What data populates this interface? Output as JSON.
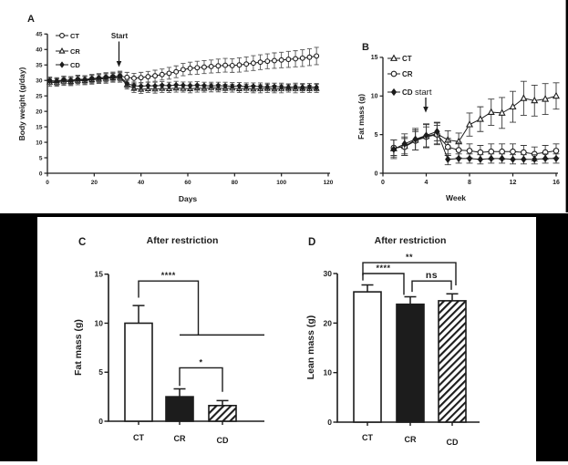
{
  "colors": {
    "background": "#ffffff",
    "band": "#000000",
    "ink": "#1c1c1c",
    "error_gray": "#555555",
    "marker_fill": "#ffffff"
  },
  "chart_data": [
    {
      "panel": "A",
      "type": "line",
      "xlabel": "Days",
      "ylabel": "Body weight (g/day)",
      "xlim": [
        0,
        120
      ],
      "ylim": [
        0,
        45
      ],
      "xticks": [
        0,
        20,
        40,
        60,
        80,
        100,
        120
      ],
      "yticks": [
        0,
        5,
        10,
        15,
        20,
        25,
        30,
        35,
        40,
        45
      ],
      "annotation": {
        "text": "Start",
        "x": 30.5
      },
      "x": [
        1,
        4,
        7,
        10,
        13,
        16,
        19,
        22,
        25,
        28,
        31,
        34,
        37,
        40,
        43,
        46,
        49,
        52,
        55,
        58,
        61,
        64,
        67,
        70,
        73,
        76,
        79,
        82,
        85,
        88,
        91,
        94,
        97,
        100,
        103,
        106,
        109,
        112,
        115
      ],
      "series": [
        {
          "name": "CT",
          "marker": "circle-open",
          "values": [
            29.8,
            29.6,
            30.1,
            29.9,
            30.3,
            30.1,
            30.5,
            30.7,
            31.0,
            31.2,
            31.4,
            31.0,
            30.7,
            30.9,
            31.2,
            31.5,
            31.9,
            32.3,
            32.8,
            33.5,
            33.9,
            34.1,
            34.3,
            34.5,
            34.7,
            34.9,
            34.8,
            35.0,
            35.3,
            35.6,
            35.9,
            36.2,
            36.4,
            36.6,
            36.8,
            37.0,
            37.2,
            37.5,
            37.9
          ],
          "errors": [
            1.2,
            1.2,
            1.3,
            1.3,
            1.3,
            1.4,
            1.4,
            1.5,
            1.5,
            1.5,
            1.6,
            1.6,
            1.6,
            1.7,
            1.7,
            1.8,
            1.8,
            1.9,
            1.9,
            2.0,
            2.0,
            2.1,
            2.1,
            2.1,
            2.2,
            2.2,
            2.2,
            2.3,
            2.3,
            2.4,
            2.4,
            2.4,
            2.5,
            2.5,
            2.6,
            2.6,
            2.7,
            2.7,
            2.8
          ]
        },
        {
          "name": "CR",
          "marker": "triangle-open",
          "values": [
            29.4,
            29.3,
            29.7,
            29.6,
            30.0,
            29.9,
            30.2,
            30.4,
            30.6,
            30.8,
            30.9,
            28.6,
            27.4,
            27.1,
            27.3,
            27.2,
            27.4,
            27.3,
            27.5,
            27.4,
            27.3,
            27.5,
            27.4,
            27.6,
            27.5,
            27.4,
            27.5,
            27.3,
            27.4,
            27.2,
            27.3,
            27.4,
            27.2,
            27.3,
            27.4,
            27.3,
            27.4,
            27.3,
            27.4
          ],
          "errors": [
            1.3,
            1.2,
            1.3,
            1.3,
            1.4,
            1.3,
            1.4,
            1.4,
            1.5,
            1.4,
            1.5,
            1.4,
            1.3,
            1.3,
            1.2,
            1.3,
            1.3,
            1.2,
            1.3,
            1.2,
            1.3,
            1.3,
            1.2,
            1.3,
            1.2,
            1.3,
            1.3,
            1.2,
            1.3,
            1.2,
            1.3,
            1.3,
            1.2,
            1.3,
            1.2,
            1.3,
            1.3,
            1.2,
            1.3
          ]
        },
        {
          "name": "CD",
          "marker": "diamond-filled",
          "values": [
            29.9,
            29.8,
            30.2,
            30.0,
            30.4,
            30.3,
            30.6,
            30.8,
            31.0,
            31.1,
            31.3,
            29.0,
            28.3,
            28.1,
            28.3,
            28.2,
            28.4,
            28.3,
            28.5,
            28.4,
            28.3,
            28.4,
            28.3,
            28.2,
            28.3,
            28.2,
            28.1,
            28.2,
            28.0,
            28.1,
            28.0,
            27.9,
            28.0,
            27.9,
            27.8,
            27.9,
            27.8,
            27.9,
            27.8
          ],
          "errors": [
            1.2,
            1.1,
            1.2,
            1.2,
            1.3,
            1.2,
            1.3,
            1.3,
            1.4,
            1.3,
            1.4,
            1.3,
            1.2,
            1.2,
            1.1,
            1.2,
            1.2,
            1.1,
            1.2,
            1.1,
            1.2,
            1.2,
            1.1,
            1.2,
            1.1,
            1.2,
            1.2,
            1.1,
            1.2,
            1.1,
            1.2,
            1.2,
            1.1,
            1.2,
            1.1,
            1.2,
            1.2,
            1.1,
            1.2
          ]
        }
      ]
    },
    {
      "panel": "B",
      "type": "line",
      "xlabel": "Week",
      "ylabel": "Fat mass (g)",
      "xlim": [
        0,
        16
      ],
      "ylim": [
        0,
        15
      ],
      "xticks": [
        0,
        4,
        8,
        12,
        16
      ],
      "yticks": [
        0,
        5,
        10,
        15
      ],
      "annotation": {
        "text": "start",
        "x": 4.0
      },
      "x": [
        1,
        2,
        3,
        4,
        5,
        6,
        7,
        8,
        9,
        10,
        11,
        12,
        13,
        14,
        15,
        16
      ],
      "series": [
        {
          "name": "CT",
          "marker": "triangle-open",
          "values": [
            3.2,
            3.5,
            4.3,
            4.8,
            5.1,
            4.3,
            4.1,
            6.3,
            7.0,
            7.9,
            7.8,
            8.6,
            9.7,
            9.4,
            9.6,
            10.0
          ],
          "errors": [
            1.1,
            1.2,
            1.3,
            1.5,
            1.4,
            1.2,
            1.1,
            1.5,
            1.6,
            1.7,
            2.0,
            2.0,
            2.2,
            2.0,
            2.0,
            1.7
          ]
        },
        {
          "name": "CR",
          "marker": "circle-open",
          "values": [
            3.3,
            3.4,
            4.2,
            4.7,
            5.0,
            3.4,
            3.0,
            2.9,
            2.7,
            2.8,
            2.8,
            2.8,
            2.7,
            2.5,
            2.7,
            2.9
          ],
          "errors": [
            1.0,
            1.1,
            1.2,
            1.3,
            1.2,
            1.1,
            1.0,
            0.9,
            0.9,
            1.0,
            1.0,
            1.0,
            0.9,
            0.9,
            0.9,
            0.9
          ]
        },
        {
          "name": "CD",
          "marker": "diamond-filled",
          "values": [
            3.1,
            3.8,
            4.4,
            4.9,
            5.4,
            1.8,
            1.9,
            1.9,
            1.8,
            1.9,
            1.9,
            1.8,
            1.8,
            1.8,
            1.9,
            1.9
          ],
          "errors": [
            1.2,
            1.3,
            1.4,
            1.5,
            1.2,
            0.7,
            0.6,
            0.6,
            0.6,
            0.6,
            0.6,
            0.6,
            0.6,
            0.6,
            0.6,
            0.6
          ]
        }
      ]
    },
    {
      "panel": "C",
      "type": "bar",
      "title": "After restriction",
      "ylabel": "Fat mass (g)",
      "ylim": [
        0,
        15
      ],
      "yticks": [
        0,
        5,
        10,
        15
      ],
      "categories": [
        "CT",
        "CR",
        "CD"
      ],
      "values": [
        10.0,
        2.5,
        1.6
      ],
      "errors": [
        1.8,
        0.8,
        0.5
      ],
      "bar_styles": [
        "open",
        "solid",
        "hatched"
      ],
      "significance": [
        {
          "label": "****",
          "style": "nested",
          "bar_y": 14.3,
          "anchor_drop": 12.6,
          "low_y": 8.8
        },
        {
          "label": "*",
          "style": "pair",
          "a": "CR",
          "b": "CD",
          "bar_y": 5.45,
          "a_drop": 3.6,
          "b_drop": 3.0
        }
      ]
    },
    {
      "panel": "D",
      "type": "bar",
      "title": "After restriction",
      "ylabel": "Lean mass (g)",
      "ylim": [
        0,
        30
      ],
      "yticks": [
        0,
        10,
        20,
        30
      ],
      "categories": [
        "CT",
        "CR",
        "CD"
      ],
      "values": [
        26.3,
        23.8,
        24.5
      ],
      "errors": [
        1.4,
        1.5,
        1.4
      ],
      "bar_styles": [
        "open",
        "solid",
        "hatched"
      ],
      "significance": [
        {
          "label": "**",
          "style": "pair",
          "a": "CT",
          "b": "CD",
          "bar_y": 32.2,
          "a_drop": 29.6,
          "b_drop": 27.6,
          "a_dx": -5,
          "b_dx": 4
        },
        {
          "label": "****",
          "style": "pair",
          "a": "CT",
          "b": "CR",
          "bar_y": 30.0,
          "a_drop": 28.6,
          "b_drop": 25.7,
          "a_dx": -5,
          "b_dx": -7
        },
        {
          "label": "ns",
          "style": "pair",
          "a": "CR",
          "b": "CD",
          "bar_y": 28.5,
          "a_drop": 26.3,
          "b_drop": 26.7,
          "a_dx": 2,
          "b_dx": -1,
          "big": true
        }
      ]
    }
  ]
}
